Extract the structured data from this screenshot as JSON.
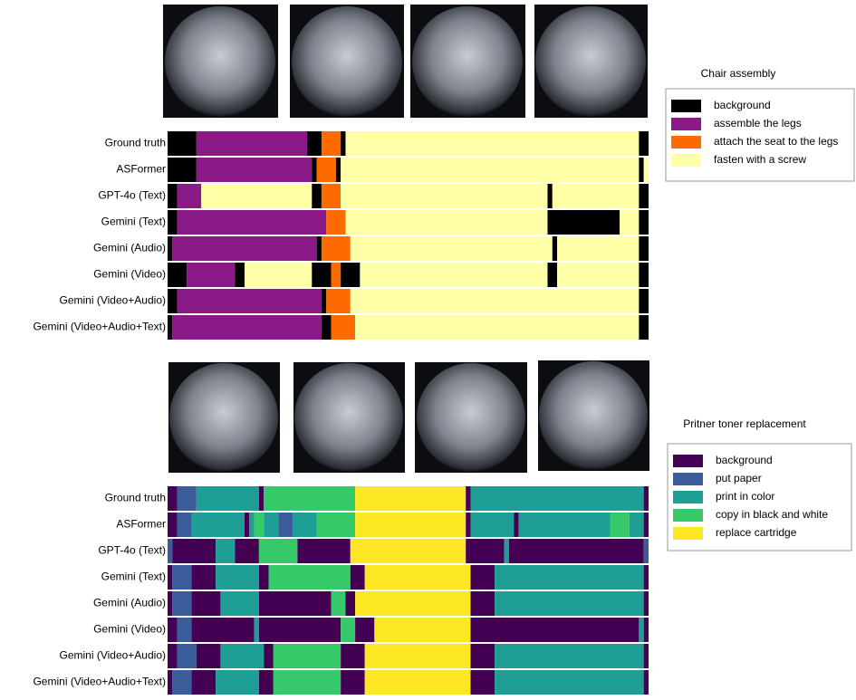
{
  "chart_data": [
    {
      "type": "segmentation",
      "title": "Chair assembly",
      "classes": [
        "background",
        "assemble the legs",
        "attach the seat to the legs",
        "fasten with a screw"
      ],
      "colors": [
        "#000000",
        "#8b1a89",
        "#ff6a00",
        "#ffffa8"
      ],
      "rows": [
        {
          "name": "Ground truth",
          "ends": [
            6,
            29,
            32,
            36,
            37,
            98,
            100
          ],
          "classes": [
            0,
            1,
            0,
            2,
            0,
            3,
            0
          ]
        },
        {
          "name": "ASFormer",
          "ends": [
            6,
            30,
            31,
            35,
            36,
            98,
            99,
            100
          ],
          "classes": [
            0,
            1,
            0,
            2,
            0,
            3,
            0,
            3
          ]
        },
        {
          "name": "GPT-4o (Text)",
          "ends": [
            2,
            7,
            30,
            32,
            36,
            79,
            80,
            98,
            100
          ],
          "classes": [
            0,
            1,
            3,
            0,
            2,
            3,
            0,
            3,
            0
          ]
        },
        {
          "name": "Gemini (Text)",
          "ends": [
            2,
            33,
            37,
            79,
            94,
            98,
            100
          ],
          "classes": [
            0,
            1,
            2,
            3,
            0,
            3,
            0
          ]
        },
        {
          "name": "Gemini (Audio)",
          "ends": [
            1,
            31,
            32,
            38,
            80,
            81,
            98,
            100
          ],
          "classes": [
            0,
            1,
            0,
            2,
            3,
            0,
            3,
            0
          ]
        },
        {
          "name": "Gemini (Video)",
          "ends": [
            4,
            14,
            16,
            30,
            34,
            36,
            40,
            79,
            81,
            98,
            100
          ],
          "classes": [
            0,
            1,
            0,
            3,
            0,
            2,
            0,
            3,
            0,
            3,
            0
          ]
        },
        {
          "name": "Gemini (Video+Audio)",
          "ends": [
            2,
            32,
            33,
            38,
            98,
            100
          ],
          "classes": [
            0,
            1,
            0,
            2,
            3,
            0
          ]
        },
        {
          "name": "Gemini (Video+Audio+Text)",
          "ends": [
            1,
            32,
            34,
            39,
            98,
            100
          ],
          "classes": [
            0,
            1,
            0,
            2,
            3,
            0
          ]
        }
      ]
    },
    {
      "type": "segmentation",
      "title": "Pritner toner replacement",
      "classes": [
        "background",
        "put paper",
        "print in color",
        "copy in black and white",
        "replace cartridge"
      ],
      "colors": [
        "#440154",
        "#3b5c9a",
        "#1f9e96",
        "#35c96a",
        "#fde725"
      ],
      "rows": [
        {
          "name": "Ground truth",
          "ends": [
            2,
            6,
            19,
            20,
            39,
            62,
            63,
            99,
            100
          ],
          "classes": [
            0,
            1,
            2,
            0,
            3,
            4,
            0,
            2,
            0
          ]
        },
        {
          "name": "ASFormer",
          "ends": [
            2,
            5,
            16,
            17,
            18,
            20,
            23,
            26,
            31,
            39,
            62,
            63,
            72,
            73,
            92,
            96,
            99,
            100
          ],
          "classes": [
            0,
            1,
            2,
            0,
            2,
            3,
            2,
            1,
            2,
            3,
            4,
            0,
            2,
            0,
            2,
            3,
            2,
            0
          ]
        },
        {
          "name": "GPT-4o (Text)",
          "ends": [
            1,
            10,
            14,
            19,
            27,
            38,
            62,
            70,
            71,
            99,
            100
          ],
          "classes": [
            1,
            0,
            2,
            0,
            3,
            0,
            4,
            0,
            2,
            0,
            1
          ]
        },
        {
          "name": "Gemini (Text)",
          "ends": [
            1,
            5,
            10,
            19,
            21,
            38,
            41,
            63,
            68,
            99,
            100
          ],
          "classes": [
            0,
            1,
            0,
            2,
            0,
            3,
            0,
            4,
            0,
            2,
            0
          ]
        },
        {
          "name": "Gemini (Audio)",
          "ends": [
            1,
            5,
            11,
            19,
            34,
            37,
            39,
            63,
            68,
            99,
            100
          ],
          "classes": [
            0,
            1,
            0,
            2,
            0,
            3,
            0,
            4,
            0,
            2,
            0
          ]
        },
        {
          "name": "Gemini (Video)",
          "ends": [
            2,
            5,
            18,
            19,
            36,
            39,
            43,
            63,
            98,
            99,
            100
          ],
          "classes": [
            0,
            1,
            0,
            2,
            0,
            3,
            0,
            4,
            0,
            2,
            0
          ]
        },
        {
          "name": "Gemini (Video+Audio)",
          "ends": [
            2,
            6,
            11,
            20,
            22,
            36,
            41,
            63,
            68,
            99,
            100
          ],
          "classes": [
            0,
            1,
            0,
            2,
            0,
            3,
            0,
            4,
            0,
            2,
            0
          ]
        },
        {
          "name": "Gemini (Video+Audio+Text)",
          "ends": [
            1,
            5,
            10,
            19,
            22,
            36,
            41,
            63,
            68,
            99,
            100
          ],
          "classes": [
            0,
            1,
            0,
            2,
            0,
            3,
            0,
            4,
            0,
            2,
            0
          ]
        }
      ]
    }
  ]
}
